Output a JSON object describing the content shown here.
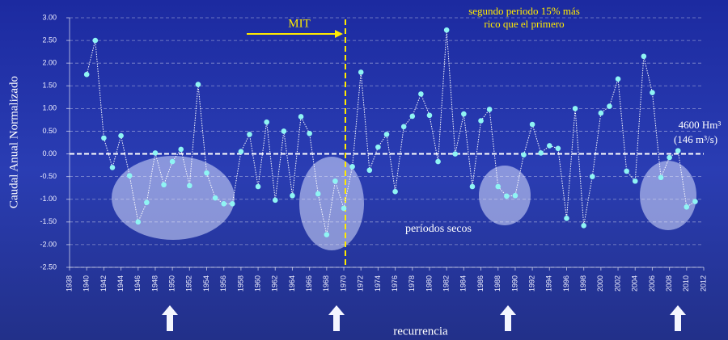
{
  "chart_data": {
    "type": "line",
    "y_label": "Caudal Anual Normalizado",
    "x_label": "recurrencia",
    "marker_label": "MIT",
    "annotation": [
      "segundo periodo 15% más",
      "rico que el primero"
    ],
    "reference_label": [
      "4600 Hm³",
      "(146 m³/s)"
    ],
    "dry_label": "períodos secos",
    "x": [
      1940,
      1941,
      1942,
      1943,
      1944,
      1945,
      1946,
      1947,
      1948,
      1949,
      1950,
      1951,
      1952,
      1953,
      1954,
      1955,
      1956,
      1957,
      1958,
      1959,
      1960,
      1961,
      1962,
      1963,
      1964,
      1965,
      1966,
      1967,
      1968,
      1969,
      1970,
      1971,
      1972,
      1973,
      1974,
      1975,
      1976,
      1977,
      1978,
      1979,
      1980,
      1981,
      1982,
      1983,
      1984,
      1985,
      1986,
      1987,
      1988,
      1989,
      1990,
      1991,
      1992,
      1993,
      1994,
      1995,
      1996,
      1997,
      1998,
      1999,
      2000,
      2001,
      2002,
      2003,
      2004,
      2005,
      2006,
      2007,
      2008,
      2009,
      2010,
      2011
    ],
    "series": [
      {
        "color": "#8ff4f4",
        "values": [
          1.75,
          2.5,
          0.35,
          -0.3,
          0.4,
          -0.48,
          -1.5,
          -1.07,
          0.02,
          -0.68,
          -0.17,
          0.1,
          -0.7,
          1.53,
          -0.42,
          -0.97,
          -1.1,
          -1.1,
          0.05,
          0.43,
          -0.72,
          0.7,
          -1.02,
          0.5,
          -0.92,
          0.82,
          0.45,
          -0.88,
          -1.78,
          -0.6,
          -1.2,
          -0.28,
          1.8,
          -0.36,
          0.15,
          0.43,
          -0.83,
          0.6,
          0.83,
          1.32,
          0.85,
          -0.17,
          2.73,
          0.0,
          0.88,
          -0.72,
          0.73,
          0.98,
          -0.72,
          -0.93,
          -0.92,
          -0.02,
          0.65,
          0.02,
          0.18,
          0.12,
          -1.42,
          1.0,
          -1.58,
          -0.5,
          0.9,
          1.05,
          1.65,
          -0.38,
          -0.6,
          2.15,
          1.35,
          -0.52,
          -0.08,
          0.07,
          -1.17,
          -1.05
        ]
      }
    ],
    "xlim": [
      1938,
      2012
    ],
    "xticks": [
      1938,
      1940,
      1942,
      1944,
      1946,
      1948,
      1950,
      1952,
      1954,
      1956,
      1958,
      1960,
      1962,
      1964,
      1966,
      1968,
      1970,
      1972,
      1974,
      1976,
      1978,
      1980,
      1982,
      1984,
      1986,
      1988,
      1990,
      1992,
      1994,
      1996,
      1998,
      2000,
      2002,
      2004,
      2006,
      2008,
      2010,
      2012
    ],
    "ylim": [
      -2.5,
      3
    ],
    "yticks": [
      {
        "value": 3,
        "label": "3.00"
      },
      {
        "value": 2.5,
        "label": "2.50"
      },
      {
        "value": 2,
        "label": "2.00"
      },
      {
        "value": 1.5,
        "label": "1.50"
      },
      {
        "value": 1,
        "label": "1.00"
      },
      {
        "value": 0.5,
        "label": "0.50"
      },
      {
        "value": 0,
        "label": "0.00"
      },
      {
        "value": -0.5,
        "label": "-0.50"
      },
      {
        "value": -1,
        "label": "-1.00"
      },
      {
        "value": -1.5,
        "label": "-1.50"
      },
      {
        "value": -2,
        "label": "-2.00"
      },
      {
        "value": -2.5,
        "label": "-2.50"
      }
    ],
    "grid": true
  }
}
